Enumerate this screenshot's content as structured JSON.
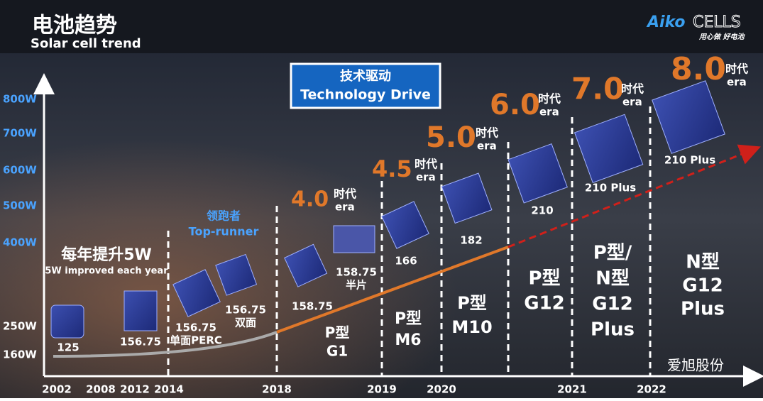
{
  "header": {
    "title": "电池趋势",
    "subtitle": "Solar cell trend"
  },
  "logo": {
    "brand": "Aiko",
    "brand2": "CELLS",
    "tagline": "用心做 好电池"
  },
  "banner": {
    "zh": "技术驱动",
    "en": "Technology Drive"
  },
  "y_axis": [
    "800W",
    "700W",
    "600W",
    "500W",
    "400W",
    "250W",
    "160W"
  ],
  "x_axis": [
    "2002",
    "2008",
    "2012",
    "2014",
    "2018",
    "2019",
    "2020",
    "2021",
    "2022"
  ],
  "eras": [
    {
      "number": "4.0",
      "zh": "时代",
      "en": "era"
    },
    {
      "number": "4.5",
      "zh": "时代",
      "en": "era"
    },
    {
      "number": "5.0",
      "zh": "时代",
      "en": "era"
    },
    {
      "number": "6.0",
      "zh": "时代",
      "en": "era"
    },
    {
      "number": "7.0",
      "zh": "时代",
      "en": "era"
    },
    {
      "number": "8.0",
      "zh": "时代",
      "en": "era"
    }
  ],
  "cells": [
    {
      "lines": [
        "125"
      ]
    },
    {
      "lines": [
        "156.75"
      ]
    },
    {
      "lines": [
        "156.75",
        "单面PERC"
      ]
    },
    {
      "lines": [
        "156.75",
        "双面"
      ]
    },
    {
      "lines": [
        "158.75"
      ]
    },
    {
      "lines": [
        "158.75",
        "半片"
      ]
    },
    {
      "lines": [
        "166"
      ]
    },
    {
      "lines": [
        "182"
      ]
    },
    {
      "lines": [
        "210"
      ]
    },
    {
      "lines": [
        "210 Plus"
      ]
    },
    {
      "lines": [
        "210 Plus"
      ]
    }
  ],
  "sections": [
    {
      "lines": [
        "每年提升5W",
        "5W improved each year"
      ]
    },
    {
      "lines": [
        "领跑者",
        "Top-runner"
      ]
    },
    {
      "lines": [
        "P型",
        "G1"
      ]
    },
    {
      "lines": [
        "P型",
        "M6"
      ]
    },
    {
      "lines": [
        "P型",
        "M10"
      ]
    },
    {
      "lines": [
        "P型",
        "G12"
      ]
    },
    {
      "lines": [
        "P型/",
        "N型",
        "G12",
        "Plus"
      ]
    },
    {
      "lines": [
        "N型",
        "G12",
        "Plus"
      ]
    }
  ],
  "watermark": "爱旭股份"
}
